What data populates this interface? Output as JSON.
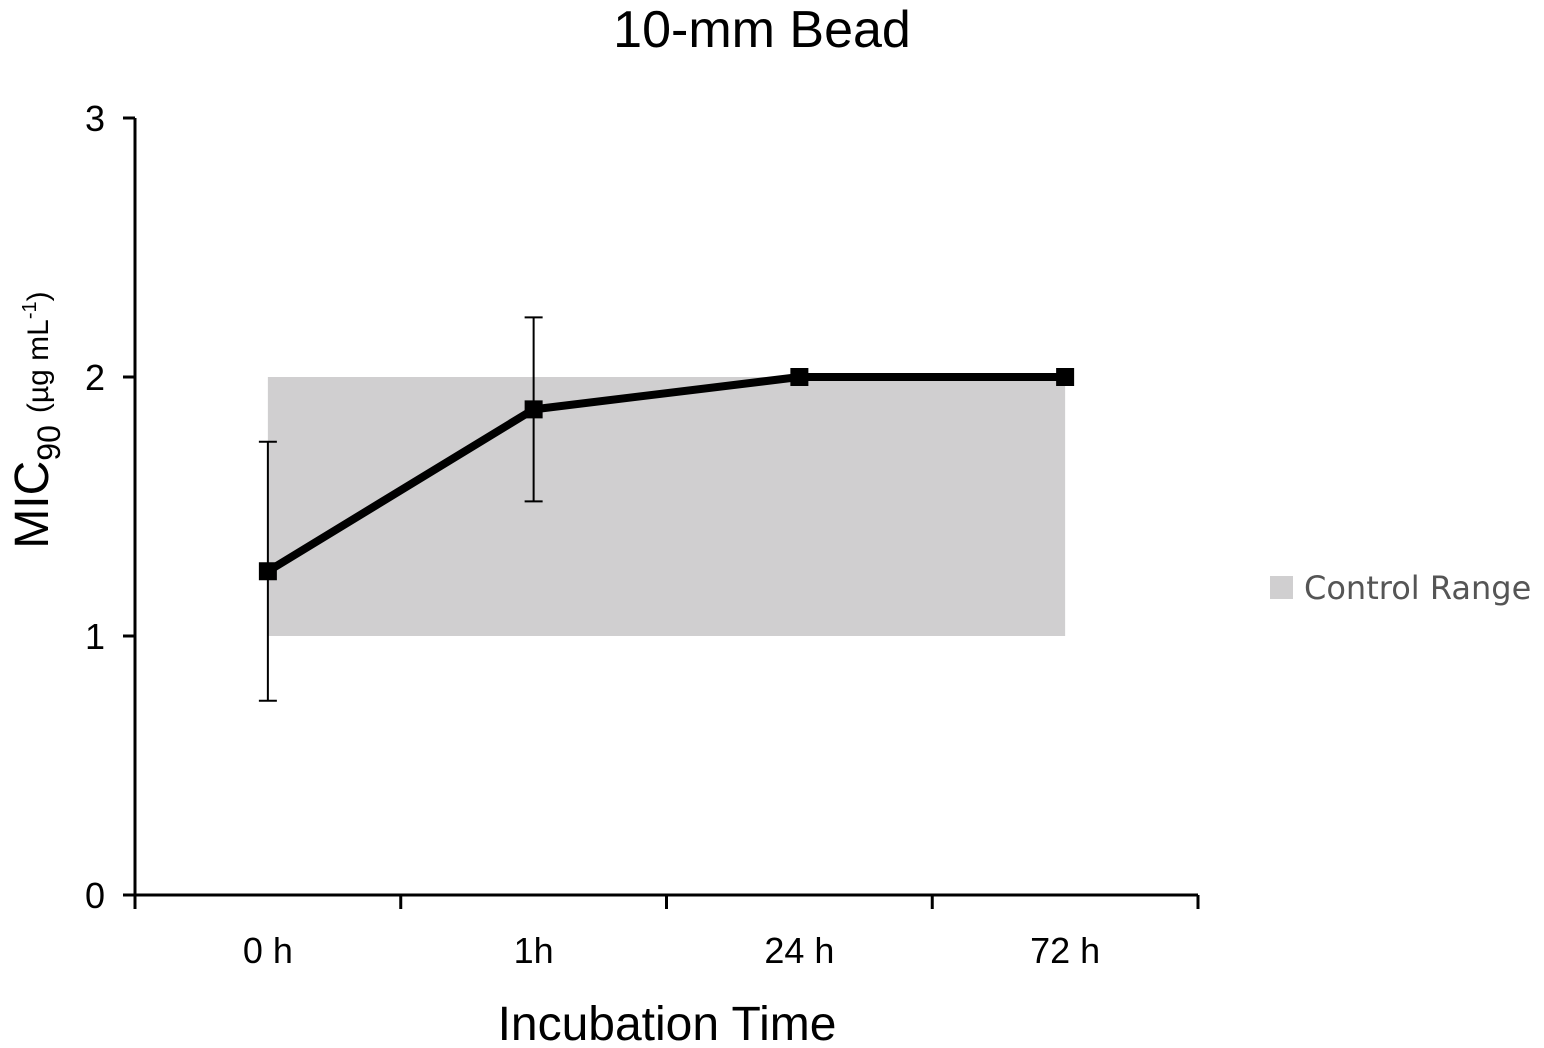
{
  "chart_data": {
    "type": "line",
    "title": "10-mm Bead",
    "xlabel": "Incubation Time",
    "ylabel": {
      "main": "MIC",
      "sub": "90",
      "unit": "(µg mL",
      "sup": "-1",
      "close": ")"
    },
    "categories": [
      "0 h",
      "1h",
      "24 h",
      "72 h"
    ],
    "series": [
      {
        "name": "MIC90",
        "values": [
          1.25,
          1.875,
          2,
          2
        ],
        "error_low": [
          0.75,
          1.52
        ],
        "error_high": [
          1.75,
          2.23
        ],
        "color": "#000000"
      }
    ],
    "band": {
      "name": "Control Range",
      "ymin": 1,
      "ymax": 2,
      "color": "#d0cfd0"
    },
    "ylim": [
      0,
      3
    ],
    "yticks": [
      "0",
      "1",
      "2",
      "3"
    ],
    "legend": {
      "placement": "right",
      "entries": [
        "Control Range"
      ]
    },
    "grid": false
  }
}
